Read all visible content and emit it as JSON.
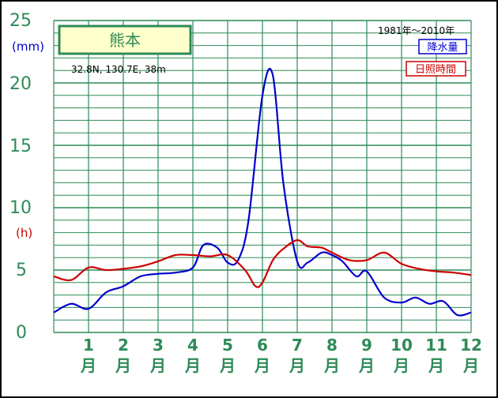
{
  "chart_data": {
    "type": "line",
    "title": "熊本",
    "location": "32.8N, 130.7E, 38m",
    "period": "1981年〜2010年",
    "y_units": {
      "left_top": "(mm)",
      "left_mid": "(h)"
    },
    "yticks": [
      "25",
      "20",
      "15",
      "10",
      "5",
      "0"
    ],
    "ylim": [
      0,
      25
    ],
    "grid": true,
    "month_labels": [
      {
        "num": "1",
        "unit": "月"
      },
      {
        "num": "2",
        "unit": "月"
      },
      {
        "num": "3",
        "unit": "月"
      },
      {
        "num": "4",
        "unit": "月"
      },
      {
        "num": "5",
        "unit": "月"
      },
      {
        "num": "6",
        "unit": "月"
      },
      {
        "num": "7",
        "unit": "月"
      },
      {
        "num": "8",
        "unit": "月"
      },
      {
        "num": "9",
        "unit": "月"
      },
      {
        "num": "10",
        "unit": "月"
      },
      {
        "num": "11",
        "unit": "月"
      },
      {
        "num": "12",
        "unit": "月"
      }
    ],
    "legend": {
      "placement": "top-right",
      "items": [
        "降水量",
        "日照時間"
      ]
    },
    "series": [
      {
        "name": "降水量",
        "color": "#0000cc",
        "x": [
          0.0,
          0.5,
          1.0,
          1.5,
          2.0,
          2.5,
          3.0,
          3.5,
          4.0,
          4.3,
          4.7,
          5.0,
          5.3,
          5.6,
          6.0,
          6.3,
          6.6,
          7.0,
          7.3,
          7.7,
          8.0,
          8.3,
          8.7,
          9.0,
          9.5,
          10.0,
          10.4,
          10.8,
          11.2,
          11.6,
          12.0
        ],
        "values": [
          1.6,
          2.3,
          1.9,
          3.2,
          3.7,
          4.5,
          4.7,
          4.8,
          5.2,
          7.0,
          6.8,
          5.6,
          5.8,
          9.0,
          19.0,
          20.6,
          12.0,
          5.7,
          5.6,
          6.4,
          6.2,
          5.7,
          4.5,
          4.9,
          2.8,
          2.4,
          2.8,
          2.3,
          2.5,
          1.4,
          1.6
        ]
      },
      {
        "name": "日照時間",
        "color": "#cc0000",
        "x": [
          0.0,
          0.5,
          1.0,
          1.5,
          2.0,
          2.5,
          3.0,
          3.5,
          4.0,
          4.5,
          5.0,
          5.5,
          5.8,
          6.0,
          6.3,
          6.6,
          7.0,
          7.3,
          7.7,
          8.0,
          8.5,
          9.0,
          9.5,
          10.0,
          10.5,
          11.0,
          11.5,
          12.0
        ],
        "values": [
          4.5,
          4.2,
          5.2,
          5.0,
          5.1,
          5.3,
          5.7,
          6.2,
          6.2,
          6.1,
          6.2,
          5.0,
          3.7,
          4.0,
          5.8,
          6.7,
          7.4,
          6.9,
          6.8,
          6.4,
          5.8,
          5.8,
          6.4,
          5.5,
          5.1,
          4.9,
          4.8,
          4.6
        ]
      }
    ]
  }
}
